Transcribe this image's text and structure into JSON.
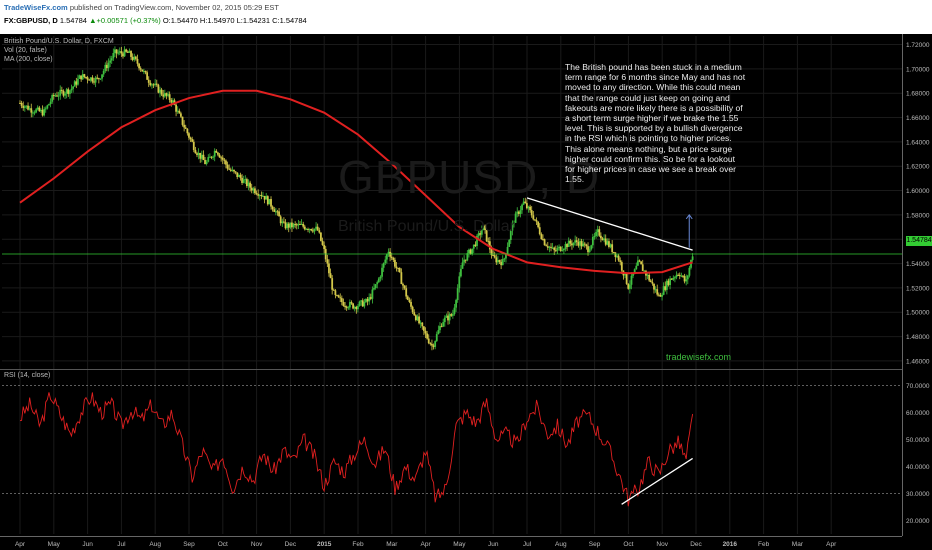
{
  "header": {
    "brand": "TradeWiseFx.com",
    "published": "published on TradingView.com, November 02, 2015 05:29 EST",
    "symbol": "FX:GBPUSD, D",
    "last": "1.54784",
    "change": "▲+0.00571 (+0.37%)",
    "ohlc": "O:1.54470 H:1.54970 L:1.54231 C:1.54784"
  },
  "indicators": {
    "main_title": "British Pound/U.S. Dollar, D, FXCM",
    "vol": "Vol (20, false)",
    "ma": "MA (200, close)",
    "rsi": "RSI (14, close)"
  },
  "watermark": {
    "symbol": "GBPUSD, D",
    "name": "British Pound/U.S. Dollar"
  },
  "annotation": "The British pound has been stuck in a medium term range for 6 months since May and has not moved to any direction. While this could mean that the range could just keep on going and fakeouts are more likely there is a possibility of a short term surge higher if we brake the 1.55 level. This is supported by a bullish divergence in the RSI which is pointing to higher prices. This alone means nothing, but a price surge higher could confirm this. So be for a lookout for higher prices in case we see a break over 1.55.",
  "site_label": "tradewisefx.com",
  "price_tag": "1.54784",
  "colors": {
    "up": "#3fbf3f",
    "down": "#d4c84a",
    "ma": "#e02020",
    "rsi": "#e02020",
    "hline": "#33cc33",
    "trend": "#ffffff",
    "arrow": "#6a8ad8"
  },
  "chart_data": [
    {
      "type": "candlestick",
      "title": "British Pound/U.S. Dollar, D, FXCM",
      "y_ticks": [
        "1.72000",
        "1.70000",
        "1.68000",
        "1.66000",
        "1.64000",
        "1.62000",
        "1.60000",
        "1.58000",
        "1.56000",
        "1.54000",
        "1.52000",
        "1.50000",
        "1.48000",
        "1.46000"
      ],
      "ylim": [
        1.455,
        1.727
      ],
      "x_ticks": [
        "Apr",
        "May",
        "Jun",
        "Jul",
        "Aug",
        "Sep",
        "Oct",
        "Nov",
        "Dec",
        "2015",
        "Feb",
        "Mar",
        "Apr",
        "May",
        "Jun",
        "Jul",
        "Aug",
        "Sep",
        "Oct",
        "Nov",
        "Dec",
        "2016",
        "Feb",
        "Mar",
        "Apr"
      ],
      "close_path": [
        [
          0,
          1.672
        ],
        [
          0.3,
          1.667
        ],
        [
          0.7,
          1.664
        ],
        [
          1.0,
          1.678
        ],
        [
          1.5,
          1.683
        ],
        [
          1.8,
          1.694
        ],
        [
          2.3,
          1.691
        ],
        [
          2.8,
          1.713
        ],
        [
          3.2,
          1.713
        ],
        [
          3.5,
          1.704
        ],
        [
          3.8,
          1.691
        ],
        [
          4.2,
          1.68
        ],
        [
          4.5,
          1.674
        ],
        [
          4.8,
          1.656
        ],
        [
          5.2,
          1.633
        ],
        [
          5.5,
          1.622
        ],
        [
          5.8,
          1.634
        ],
        [
          6.2,
          1.617
        ],
        [
          6.5,
          1.611
        ],
        [
          6.8,
          1.603
        ],
        [
          7.2,
          1.596
        ],
        [
          7.5,
          1.586
        ],
        [
          7.8,
          1.571
        ],
        [
          8.3,
          1.571
        ],
        [
          8.8,
          1.568
        ],
        [
          9.0,
          1.55
        ],
        [
          9.3,
          1.513
        ],
        [
          9.6,
          1.507
        ],
        [
          9.9,
          1.505
        ],
        [
          10.3,
          1.509
        ],
        [
          10.6,
          1.526
        ],
        [
          10.9,
          1.551
        ],
        [
          11.2,
          1.533
        ],
        [
          11.5,
          1.508
        ],
        [
          11.9,
          1.486
        ],
        [
          12.2,
          1.472
        ],
        [
          12.5,
          1.493
        ],
        [
          12.8,
          1.498
        ],
        [
          13.1,
          1.542
        ],
        [
          13.4,
          1.553
        ],
        [
          13.7,
          1.57
        ],
        [
          14.0,
          1.544
        ],
        [
          14.3,
          1.541
        ],
        [
          14.6,
          1.575
        ],
        [
          14.9,
          1.59
        ],
        [
          15.2,
          1.578
        ],
        [
          15.5,
          1.558
        ],
        [
          15.8,
          1.55
        ],
        [
          16.2,
          1.556
        ],
        [
          16.5,
          1.558
        ],
        [
          16.8,
          1.552
        ],
        [
          17.1,
          1.566
        ],
        [
          17.4,
          1.556
        ],
        [
          17.7,
          1.545
        ],
        [
          18.0,
          1.521
        ],
        [
          18.3,
          1.541
        ],
        [
          18.6,
          1.528
        ],
        [
          18.9,
          1.513
        ],
        [
          19.2,
          1.526
        ],
        [
          19.5,
          1.533
        ],
        [
          19.7,
          1.524
        ],
        [
          19.9,
          1.548
        ]
      ],
      "ma_path": [
        [
          0,
          1.59
        ],
        [
          1,
          1.61
        ],
        [
          2,
          1.632
        ],
        [
          3,
          1.652
        ],
        [
          4,
          1.666
        ],
        [
          5,
          1.676
        ],
        [
          6,
          1.682
        ],
        [
          7,
          1.682
        ],
        [
          8,
          1.675
        ],
        [
          9,
          1.664
        ],
        [
          10,
          1.646
        ],
        [
          11,
          1.622
        ],
        [
          12,
          1.596
        ],
        [
          13,
          1.57
        ],
        [
          14,
          1.552
        ],
        [
          15,
          1.541
        ],
        [
          16,
          1.537
        ],
        [
          17,
          1.534
        ],
        [
          18,
          1.532
        ],
        [
          19,
          1.533
        ],
        [
          19.9,
          1.541
        ]
      ],
      "horizontal_line": 1.54784,
      "trendline": [
        [
          15.0,
          1.594
        ],
        [
          19.9,
          1.551
        ]
      ],
      "arrow": [
        [
          19.8,
          1.553
        ],
        [
          19.8,
          1.58
        ]
      ]
    },
    {
      "type": "line",
      "title": "RSI (14, close)",
      "y_ticks": [
        "70.0000",
        "60.0000",
        "50.0000",
        "40.0000",
        "30.0000",
        "20.0000"
      ],
      "ylim": [
        15,
        75
      ],
      "levels": [
        70,
        30
      ],
      "path": [
        [
          0,
          58
        ],
        [
          0.3,
          63
        ],
        [
          0.6,
          55
        ],
        [
          0.9,
          67
        ],
        [
          1.2,
          59
        ],
        [
          1.5,
          52
        ],
        [
          1.8,
          60
        ],
        [
          2.1,
          66
        ],
        [
          2.4,
          60
        ],
        [
          2.7,
          63
        ],
        [
          3.0,
          55
        ],
        [
          3.3,
          61
        ],
        [
          3.6,
          57
        ],
        [
          3.9,
          63
        ],
        [
          4.2,
          55
        ],
        [
          4.5,
          60
        ],
        [
          4.8,
          48
        ],
        [
          5.1,
          36
        ],
        [
          5.4,
          46
        ],
        [
          5.7,
          38
        ],
        [
          6.0,
          44
        ],
        [
          6.3,
          32
        ],
        [
          6.6,
          40
        ],
        [
          6.9,
          35
        ],
        [
          7.2,
          45
        ],
        [
          7.5,
          38
        ],
        [
          7.8,
          46
        ],
        [
          8.1,
          42
        ],
        [
          8.4,
          50
        ],
        [
          8.7,
          44
        ],
        [
          9.0,
          33
        ],
        [
          9.3,
          42
        ],
        [
          9.6,
          38
        ],
        [
          9.9,
          45
        ],
        [
          10.2,
          50
        ],
        [
          10.5,
          41
        ],
        [
          10.8,
          47
        ],
        [
          11.1,
          32
        ],
        [
          11.4,
          40
        ],
        [
          11.7,
          35
        ],
        [
          12.0,
          46
        ],
        [
          12.3,
          28
        ],
        [
          12.6,
          32
        ],
        [
          12.9,
          55
        ],
        [
          13.2,
          60
        ],
        [
          13.5,
          56
        ],
        [
          13.8,
          64
        ],
        [
          14.1,
          50
        ],
        [
          14.4,
          52
        ],
        [
          14.7,
          48
        ],
        [
          15.0,
          58
        ],
        [
          15.3,
          62
        ],
        [
          15.6,
          52
        ],
        [
          15.9,
          55
        ],
        [
          16.2,
          48
        ],
        [
          16.5,
          57
        ],
        [
          16.8,
          59
        ],
        [
          17.1,
          53
        ],
        [
          17.4,
          47
        ],
        [
          17.7,
          38
        ],
        [
          18.0,
          28
        ],
        [
          18.3,
          32
        ],
        [
          18.6,
          42
        ],
        [
          18.9,
          37
        ],
        [
          19.2,
          46
        ],
        [
          19.5,
          49
        ],
        [
          19.7,
          42
        ],
        [
          19.9,
          58
        ]
      ],
      "divergence_line": [
        [
          17.8,
          26
        ],
        [
          19.9,
          43
        ]
      ]
    }
  ]
}
